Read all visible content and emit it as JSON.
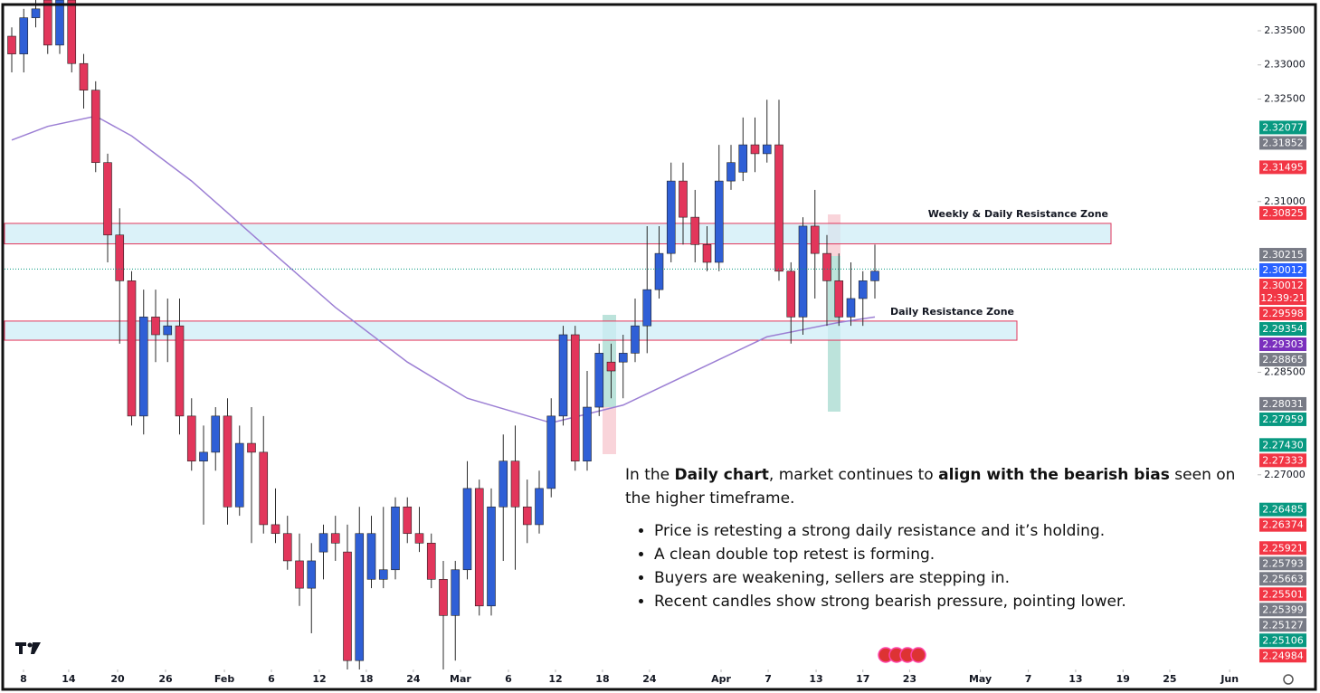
{
  "chart_data": {
    "type": "candlestick",
    "up_color": "#2f5fd6",
    "down_color": "#e2365b",
    "wick_color": "#2b2b2b",
    "open": [
      2.3342,
      2.3316,
      2.3369,
      2.3395,
      2.3329,
      2.3395,
      2.3302,
      2.3263,
      2.3157,
      2.3051,
      2.2984,
      2.2786,
      2.2931,
      2.2905,
      2.2918,
      2.2786,
      2.272,
      2.2733,
      2.2786,
      2.2653,
      2.2746,
      2.2733,
      2.2627,
      2.2614,
      2.2574,
      2.2534,
      2.2587,
      2.2614,
      2.2587,
      2.2428,
      2.2547,
      2.2547,
      2.2561,
      2.2653,
      2.2614,
      2.26,
      2.2547,
      2.2494,
      2.2561,
      2.268,
      2.2508,
      2.2653,
      2.272,
      2.2653,
      2.2627,
      2.268,
      2.2786,
      2.2905,
      2.272,
      2.2799,
      2.2865,
      2.2865,
      2.2878,
      2.2918,
      2.2971,
      2.3024,
      2.313,
      2.3077,
      2.3037,
      2.3011,
      2.313,
      2.3143,
      2.3183,
      2.317,
      2.3183,
      2.2998,
      2.2931,
      2.3064,
      2.3024,
      2.2984,
      2.2931,
      2.2958,
      2.2984
    ],
    "high": [
      2.3355,
      2.3382,
      2.3395,
      2.3395,
      2.3395,
      2.3395,
      2.3316,
      2.3276,
      2.317,
      2.309,
      2.2998,
      2.2971,
      2.2971,
      2.2958,
      2.2958,
      2.2812,
      2.2772,
      2.2799,
      2.2812,
      2.2772,
      2.2799,
      2.2786,
      2.268,
      2.264,
      2.2614,
      2.26,
      2.2627,
      2.264,
      2.2627,
      2.2653,
      2.264,
      2.2653,
      2.2667,
      2.2667,
      2.2653,
      2.2614,
      2.2574,
      2.2574,
      2.272,
      2.2693,
      2.268,
      2.2759,
      2.2772,
      2.2693,
      2.2706,
      2.2812,
      2.2918,
      2.2918,
      2.2852,
      2.2892,
      2.2892,
      2.2905,
      2.2958,
      2.3064,
      2.3064,
      2.3157,
      2.3157,
      2.3117,
      2.3064,
      2.3183,
      2.3183,
      2.3223,
      2.3223,
      2.3249,
      2.3249,
      2.3011,
      2.3077,
      2.3117,
      2.3051,
      2.3024,
      2.3011,
      2.2998,
      2.3037
    ],
    "low": [
      2.3289,
      2.3289,
      2.3355,
      2.3316,
      2.3316,
      2.3289,
      2.3236,
      2.3143,
      2.3011,
      2.2892,
      2.2772,
      2.2759,
      2.2865,
      2.2865,
      2.2759,
      2.2706,
      2.2627,
      2.2706,
      2.2627,
      2.264,
      2.26,
      2.2614,
      2.26,
      2.2561,
      2.2508,
      2.2468,
      2.2547,
      2.2574,
      2.2415,
      2.2415,
      2.2534,
      2.2534,
      2.2547,
      2.26,
      2.2587,
      2.2534,
      2.2415,
      2.2428,
      2.2547,
      2.2494,
      2.2494,
      2.2574,
      2.2561,
      2.26,
      2.2614,
      2.2667,
      2.2772,
      2.2706,
      2.2706,
      2.2786,
      2.2812,
      2.2812,
      2.2865,
      2.2878,
      2.2958,
      2.3011,
      2.3037,
      2.3011,
      2.2998,
      2.2998,
      2.3117,
      2.313,
      2.3143,
      2.3157,
      2.2984,
      2.2892,
      2.2905,
      2.2958,
      2.2918,
      2.2918,
      2.2918,
      2.2918,
      2.2958
    ],
    "close": [
      2.3316,
      2.3369,
      2.3382,
      2.3329,
      2.3395,
      2.3302,
      2.3263,
      2.3157,
      2.3051,
      2.2984,
      2.2786,
      2.2931,
      2.2905,
      2.2918,
      2.2786,
      2.272,
      2.2733,
      2.2786,
      2.2653,
      2.2746,
      2.2733,
      2.2627,
      2.2614,
      2.2574,
      2.2534,
      2.2574,
      2.2614,
      2.26,
      2.2428,
      2.2614,
      2.2614,
      2.2561,
      2.2653,
      2.2614,
      2.26,
      2.2547,
      2.2494,
      2.2561,
      2.268,
      2.2508,
      2.2653,
      2.272,
      2.2653,
      2.2627,
      2.268,
      2.2786,
      2.2905,
      2.272,
      2.2799,
      2.2878,
      2.2852,
      2.2878,
      2.2918,
      2.2971,
      2.3024,
      2.313,
      2.3077,
      2.3037,
      2.3011,
      2.313,
      2.3157,
      2.3183,
      2.317,
      2.3183,
      2.2998,
      2.2931,
      2.3064,
      2.3024,
      2.2984,
      2.2931,
      2.2958,
      2.2984,
      2.2998
    ],
    "ma": {
      "color": "#9c7fd4",
      "x": [
        0,
        3,
        7,
        10,
        15,
        21,
        27,
        33,
        38,
        45,
        51,
        57,
        63,
        69,
        72
      ],
      "values": [
        2.319,
        2.321,
        2.3225,
        2.3196,
        2.313,
        2.3037,
        2.2945,
        2.2865,
        2.2812,
        2.2776,
        2.2802,
        2.2852,
        2.2902,
        2.2923,
        2.2931
      ]
    },
    "ylim": [
      2.2415,
      2.3395
    ],
    "yticks": [
      {
        "value": 2.335,
        "label": "2.33500"
      },
      {
        "value": 2.33,
        "label": "2.33000"
      },
      {
        "value": 2.325,
        "label": "2.32500"
      },
      {
        "value": 2.31,
        "label": "2.31000"
      },
      {
        "value": 2.285,
        "label": "2.28500"
      },
      {
        "value": 2.27,
        "label": "2.27000"
      }
    ],
    "xticks": [
      {
        "value": 0.98,
        "label": "8"
      },
      {
        "value": 4.75,
        "label": "14"
      },
      {
        "value": 8.83,
        "label": "20"
      },
      {
        "value": 12.83,
        "label": "26"
      },
      {
        "value": 17.74,
        "label": "Feb"
      },
      {
        "value": 21.66,
        "label": "6"
      },
      {
        "value": 25.66,
        "label": "12"
      },
      {
        "value": 29.58,
        "label": "18"
      },
      {
        "value": 33.5,
        "label": "24"
      },
      {
        "value": 37.43,
        "label": "Mar"
      },
      {
        "value": 41.43,
        "label": "6"
      },
      {
        "value": 45.36,
        "label": "12"
      },
      {
        "value": 49.28,
        "label": "18"
      },
      {
        "value": 53.2,
        "label": "24"
      },
      {
        "value": 59.17,
        "label": "Apr"
      },
      {
        "value": 63.1,
        "label": "7"
      },
      {
        "value": 67.1,
        "label": "13"
      },
      {
        "value": 71.0,
        "label": "17"
      },
      {
        "value": 74.9,
        "label": "23"
      },
      {
        "value": 80.8,
        "label": "May"
      },
      {
        "value": 84.8,
        "label": "7"
      },
      {
        "value": 88.75,
        "label": "13"
      },
      {
        "value": 92.7,
        "label": "19"
      },
      {
        "value": 96.6,
        "label": "25"
      },
      {
        "value": 101.6,
        "label": "Jun"
      }
    ],
    "zones": [
      {
        "label": "Weekly & Daily Resistance Zone",
        "top": 2.3068,
        "bottom": 2.3038
      },
      {
        "label": "Daily Resistance Zone",
        "top": 2.2925,
        "bottom": 2.2897
      }
    ],
    "price_tags": [
      {
        "value": 2.32077,
        "color": "#089981"
      },
      {
        "value": 2.31852,
        "color": "#787b86"
      },
      {
        "value": 2.31495,
        "color": "#f23645"
      },
      {
        "value": 2.30825,
        "color": "#f23645"
      },
      {
        "value": 2.30215,
        "color": "#787b86"
      },
      {
        "value": 2.30012,
        "color": "#2962ff"
      },
      {
        "value": 2.30012,
        "color": "#f23645",
        "countdown": "12:39:21"
      },
      {
        "value": 2.29598,
        "color": "#f23645"
      },
      {
        "value": 2.29354,
        "color": "#089981"
      },
      {
        "value": 2.29303,
        "color": "#7b2fbe"
      },
      {
        "value": 2.28865,
        "color": "#787b86"
      },
      {
        "value": 2.28031,
        "color": "#787b86"
      },
      {
        "value": 2.27959,
        "color": "#089981"
      },
      {
        "value": 2.2743,
        "label": "2.27430",
        "color": "#089981"
      },
      {
        "value": 2.27333,
        "color": "#f23645"
      },
      {
        "value": 2.26485,
        "color": "#089981"
      },
      {
        "value": 2.26374,
        "color": "#f23645"
      },
      {
        "value": 2.25921,
        "color": "#f23645"
      },
      {
        "value": 2.25793,
        "color": "#787b86"
      },
      {
        "value": 2.25663,
        "color": "#787b86"
      },
      {
        "value": 2.25501,
        "color": "#f23645"
      },
      {
        "value": 2.25399,
        "color": "#787b86"
      },
      {
        "value": 2.25127,
        "color": "#787b86"
      },
      {
        "value": 2.25106,
        "color": "#089981"
      },
      {
        "value": 2.24984,
        "color": "#f23645"
      }
    ],
    "annotation": {
      "intro": [
        "In the ",
        "Daily chart",
        ", market continues to ",
        "align with the bearish bias",
        " seen on the higher timeframe."
      ],
      "bullets": [
        "Price is retesting a strong daily resistance and it’s holding.",
        "A clean double top retest is forming.",
        "Buyers are weakening, sellers are stepping in.",
        "Recent candles show strong bearish pressure, pointing lower."
      ]
    }
  }
}
